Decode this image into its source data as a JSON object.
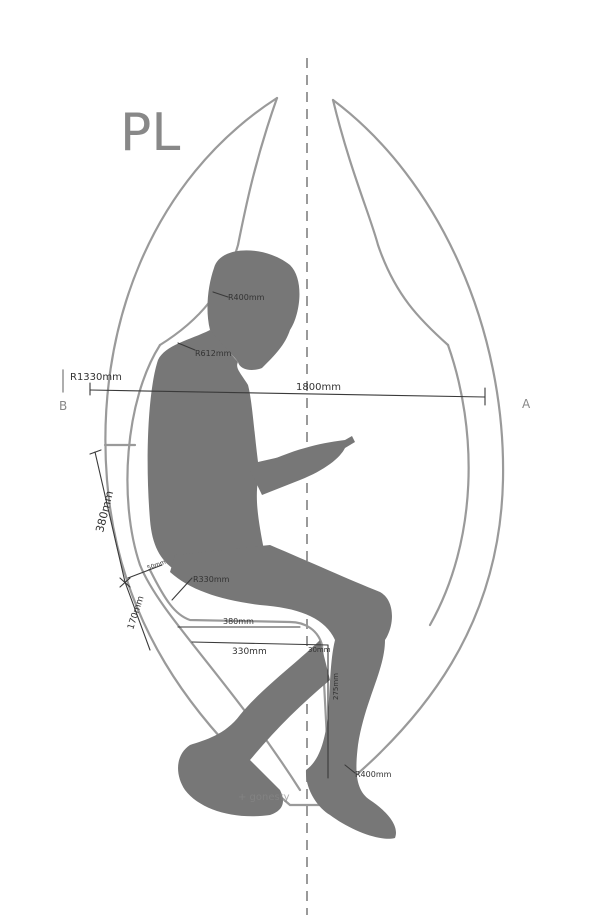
{
  "title": "PL",
  "section_marks": {
    "left": "B",
    "right": "A"
  },
  "dimensions": {
    "outer_radius": "R1330mm",
    "head_radius": "R400mm",
    "shoulder_radius": "R612mm",
    "width": "1800mm",
    "back_height": "380mm",
    "lower_back": "170mm",
    "offset": "50mm",
    "seat_radius": "R330mm",
    "seat_depth_top": "380mm",
    "seat_depth_bottom": "330mm",
    "front_offset": "30mm",
    "seat_height": "275mm",
    "bottom_radius": "R400mm"
  },
  "watermark": "+ gonesty",
  "colors": {
    "silhouette": "#777777",
    "outline": "#9a9a9a",
    "ink": "#333333"
  }
}
